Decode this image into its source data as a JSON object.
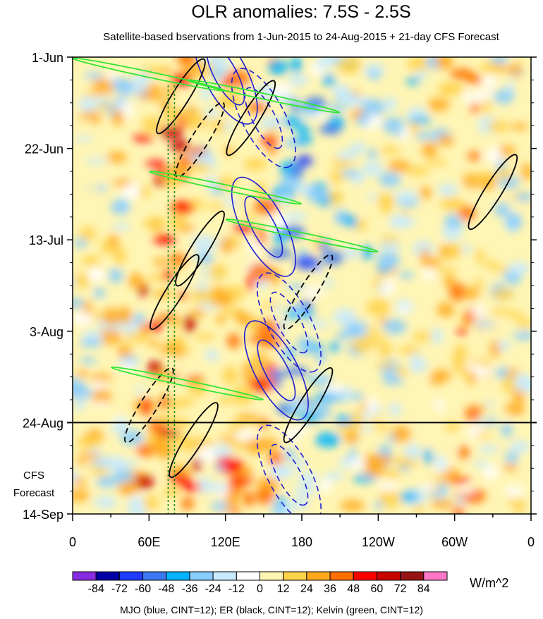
{
  "chart_data": {
    "type": "heatmap",
    "title": "OLR anomalies: 7.5S - 2.5S",
    "subtitle": "Satellite-based bservations from 1-Jun-2015 to 24-Aug-2015 + 21-day CFS Forecast",
    "x_ticks": [
      "0",
      "60E",
      "120E",
      "180",
      "120W",
      "60W",
      "0"
    ],
    "x_tick_values": [
      0,
      60,
      120,
      180,
      240,
      300,
      360
    ],
    "xlim": [
      0,
      360
    ],
    "y_ticks": [
      "1-Jun",
      "22-Jun",
      "13-Jul",
      "3-Aug",
      "24-Aug",
      "14-Sep"
    ],
    "y_tick_values": [
      "2015-06-01",
      "2015-06-22",
      "2015-07-13",
      "2015-08-03",
      "2015-08-24",
      "2015-09-14"
    ],
    "ylim": [
      "2015-06-01",
      "2015-09-14"
    ],
    "y_reversed": true,
    "observation_end": "2015-08-24",
    "forecast_label_1": "CFS",
    "forecast_label_2": "Forecast",
    "colorbar": {
      "unit": "W/m^2",
      "labels": [
        "-84",
        "-72",
        "-60",
        "-48",
        "-36",
        "-24",
        "-12",
        "0",
        "12",
        "24",
        "36",
        "48",
        "60",
        "72",
        "84"
      ],
      "colors": [
        "#8a2be2",
        "#0000a6",
        "#1e3cff",
        "#3c78f0",
        "#00b4ff",
        "#87cdff",
        "#c8ebff",
        "#ffffff",
        "#fff5b4",
        "#ffd24b",
        "#ffaa1e",
        "#ff6e00",
        "#ff0000",
        "#c80000",
        "#961414",
        "#ff78c8"
      ]
    },
    "footnote": "MJO (blue, CINT=12); ER (black, CINT=12); Kelvin (green, CINT=12)",
    "series": [
      {
        "name": "MJO",
        "color": "#1e1ed2"
      },
      {
        "name": "ER",
        "color": "#000000"
      },
      {
        "name": "Kelvin",
        "color": "#32e632"
      }
    ],
    "mjo_index": [
      {
        "date": "2015-06-05",
        "lon": 120
      },
      {
        "date": "2015-06-15",
        "lon": 150
      },
      {
        "date": "2015-07-10",
        "lon": 150
      },
      {
        "date": "2015-08-01",
        "lon": 170
      },
      {
        "date": "2015-08-12",
        "lon": 160
      },
      {
        "date": "2015-09-05",
        "lon": 170
      }
    ],
    "kelvin_index": [
      {
        "date": "2015-06-05",
        "lon": 60
      },
      {
        "date": "2015-06-10",
        "lon": 150
      },
      {
        "date": "2015-07-01",
        "lon": 120
      },
      {
        "date": "2015-07-12",
        "lon": 180
      },
      {
        "date": "2015-08-15",
        "lon": 90
      }
    ]
  }
}
